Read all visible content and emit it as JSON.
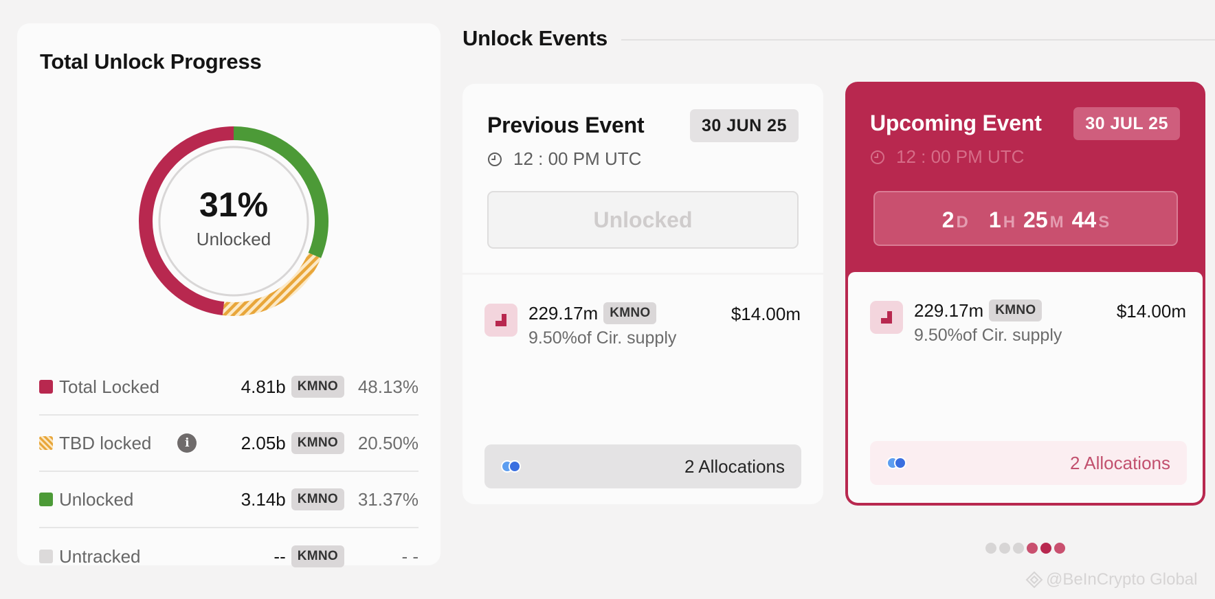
{
  "progress": {
    "title": "Total Unlock Progress",
    "percent_label": "31%",
    "caption": "Unlocked",
    "donut": [
      {
        "key": "unlocked",
        "fraction": 0.3137,
        "color": "#4c9a37"
      },
      {
        "key": "tbd_locked",
        "fraction": 0.205,
        "color": "#e8a63a"
      },
      {
        "key": "total_locked",
        "fraction": 0.4813,
        "color": "#b8284f"
      }
    ],
    "legend": [
      {
        "name": "Total Locked",
        "amount": "4.81b",
        "token": "KMNO",
        "pct": "48.13%",
        "info": false
      },
      {
        "name": "TBD locked",
        "amount": "2.05b",
        "token": "KMNO",
        "pct": "20.50%",
        "info": true
      },
      {
        "name": "Unlocked",
        "amount": "3.14b",
        "token": "KMNO",
        "pct": "31.37%",
        "info": false
      },
      {
        "name": "Untracked",
        "amount": "--",
        "token": "KMNO",
        "pct": "- -",
        "info": false
      }
    ]
  },
  "events": {
    "section_title": "Unlock Events",
    "previous": {
      "title": "Previous Event",
      "date": "30 JUN 25",
      "time": "12 : 00 PM UTC",
      "status": "Unlocked",
      "amount": "229.17m",
      "token": "KMNO",
      "usd": "$14.00m",
      "supply": "9.50%of Cir. supply",
      "allocations": "2 Allocations"
    },
    "upcoming": {
      "title": "Upcoming Event",
      "date": "30 JUL 25",
      "time": "12 : 00 PM UTC",
      "countdown": {
        "days": "2",
        "d_unit": "D",
        "hours": "1",
        "h_unit": "H",
        "minutes": "25",
        "m_unit": "M",
        "seconds": "44",
        "s_unit": "S"
      },
      "amount": "229.17m",
      "token": "KMNO",
      "usd": "$14.00m",
      "supply": "9.50%of Cir. supply",
      "allocations": "2 Allocations"
    }
  },
  "pager": {
    "total": 6,
    "active_index": 4,
    "colors": [
      "#d7d5d5",
      "#d7d5d5",
      "#d7d5d5",
      "#c9506f",
      "#b8284f",
      "#c9506f"
    ]
  },
  "watermark": "@BeInCrypto Global"
}
